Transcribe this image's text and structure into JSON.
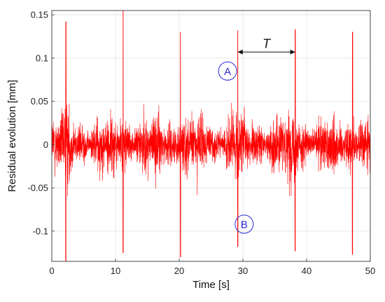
{
  "chart_data": {
    "type": "line",
    "title": "",
    "xlabel": "Time [s]",
    "ylabel": "Residual evolution [mm]",
    "xlim": [
      0,
      50
    ],
    "ylim": [
      -0.135,
      0.155
    ],
    "grid": true,
    "x_ticks": [
      0,
      10,
      20,
      30,
      40,
      50
    ],
    "x_tick_labels": [
      "0",
      "10",
      "20",
      "30",
      "40",
      "50"
    ],
    "y_ticks": [
      -0.1,
      -0.05,
      0,
      0.05,
      0.1,
      0.15
    ],
    "y_tick_labels": [
      "-0.1",
      "-0.05",
      "0",
      "0.05",
      "0.1",
      "0.15"
    ],
    "series": [
      {
        "color": "#ff0000",
        "description": "noisy residual signal, amplitude about ±0.05 mm, with periodic spikes",
        "spikes": [
          {
            "x": 2.2,
            "y_max": 0.142,
            "y_min": -0.135
          },
          {
            "x": 11.2,
            "y_max": 0.155,
            "y_min": -0.125
          },
          {
            "x": 20.2,
            "y_max": 0.13,
            "y_min": -0.13
          },
          {
            "x": 29.2,
            "y_max": 0.132,
            "y_min": -0.118
          },
          {
            "x": 38.2,
            "y_max": 0.133,
            "y_min": -0.123
          },
          {
            "x": 47.2,
            "y_max": 0.13,
            "y_min": -0.127
          }
        ]
      }
    ],
    "annotations": [
      {
        "label": "A",
        "x": 27.6,
        "y": 0.085,
        "shape": "circle",
        "color": "#2a2ad6"
      },
      {
        "label": "B",
        "x": 30.2,
        "y": -0.092,
        "shape": "circle",
        "color": "#2a2ad6"
      },
      {
        "label": "T",
        "type": "double-arrow",
        "x_start": 29.2,
        "x_end": 38.2,
        "y": 0.107
      }
    ]
  }
}
